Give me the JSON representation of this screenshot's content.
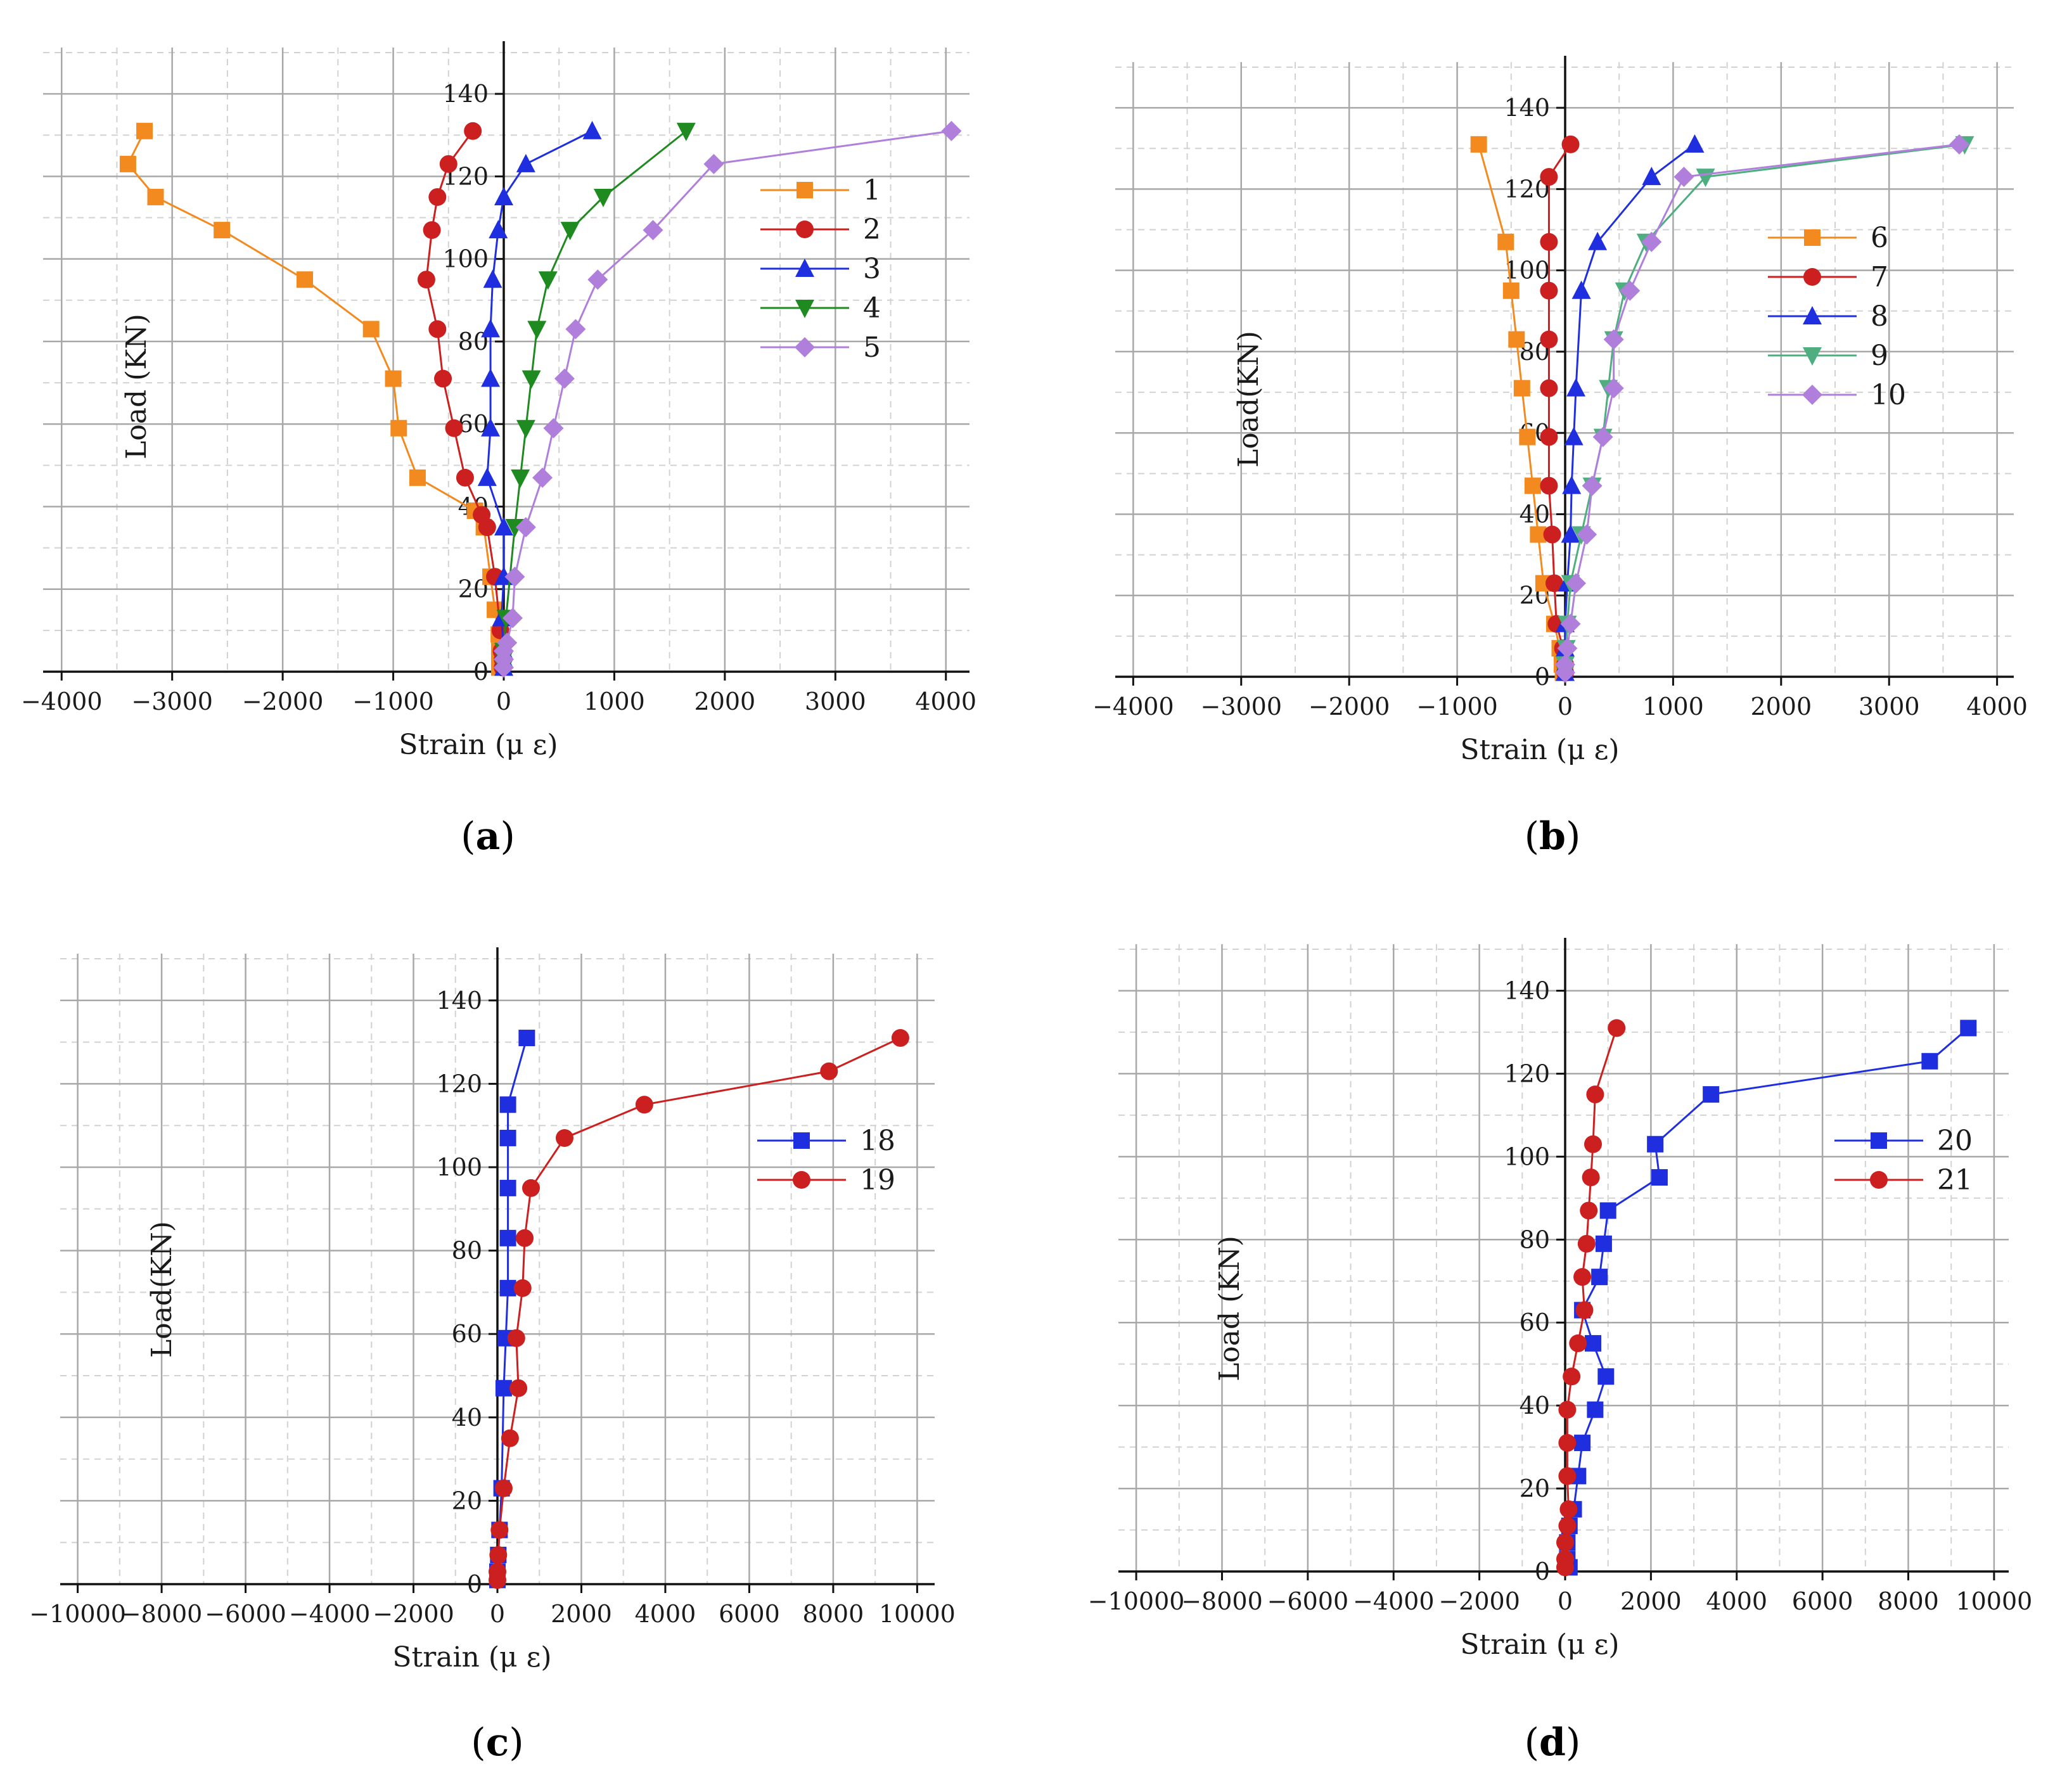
{
  "figure": {
    "background": "#ffffff",
    "grid_major": "#a8a8a8",
    "grid_minor": "#d2d2d2",
    "axis_color": "#111111"
  },
  "chart_data": [
    {
      "panel_id": "a",
      "caption": "a",
      "type": "line",
      "xlabel": "Strain (μ ε)",
      "ylabel": "Load (KN)",
      "xlim": [
        -4500,
        4500
      ],
      "ylim": [
        0,
        150
      ],
      "xticks": [
        -4000,
        -3000,
        -2000,
        -1000,
        0,
        1000,
        2000,
        3000,
        4000
      ],
      "xtick_labels": [
        "−4000",
        "−3000",
        "−2000",
        "−1000",
        "0",
        "1000",
        "2000",
        "3000",
        "4000"
      ],
      "yticks": [
        0,
        20,
        40,
        60,
        80,
        100,
        120,
        140
      ],
      "ytick_labels": [
        "0",
        "20",
        "40",
        "60",
        "80",
        "100",
        "120",
        "140"
      ],
      "legend_position": "upper-right",
      "series": [
        {
          "name": "1",
          "color": "#f28a1f",
          "marker": "square",
          "x": [
            -40,
            -40,
            -40,
            -45,
            -80,
            -120,
            -180,
            -260,
            -780,
            -950,
            -1000,
            -1200,
            -1800,
            -2550,
            -3150,
            -3400,
            -3250
          ],
          "y": [
            1,
            3,
            5,
            9,
            15,
            23,
            35,
            39,
            47,
            59,
            71,
            83,
            95,
            107,
            115,
            123,
            131
          ]
        },
        {
          "name": "2",
          "color": "#cc1f1f",
          "marker": "circle",
          "x": [
            -10,
            -10,
            -20,
            -30,
            -80,
            -150,
            -200,
            -350,
            -450,
            -550,
            -600,
            -700,
            -650,
            -600,
            -500,
            -280
          ],
          "y": [
            1,
            3,
            5,
            10,
            23,
            35,
            38,
            47,
            59,
            71,
            83,
            95,
            107,
            115,
            123,
            131
          ]
        },
        {
          "name": "3",
          "color": "#1f2fe0",
          "marker": "triangle",
          "x": [
            0,
            0,
            0,
            -20,
            0,
            0,
            -150,
            -120,
            -120,
            -120,
            -100,
            -50,
            0,
            200,
            800
          ],
          "y": [
            1,
            3,
            5,
            13,
            23,
            35,
            47,
            59,
            71,
            83,
            95,
            107,
            115,
            123,
            131
          ]
        },
        {
          "name": "4",
          "color": "#1f8a1f",
          "marker": "triangle-down",
          "x": [
            0,
            0,
            0,
            20,
            100,
            150,
            200,
            250,
            300,
            400,
            600,
            900,
            1650
          ],
          "y": [
            1,
            3,
            5,
            13,
            35,
            47,
            59,
            71,
            83,
            95,
            107,
            115,
            131
          ]
        },
        {
          "name": "5",
          "color": "#b07fdc",
          "marker": "diamond",
          "x": [
            0,
            0,
            0,
            30,
            80,
            100,
            200,
            350,
            450,
            550,
            650,
            850,
            1350,
            1900,
            4050
          ],
          "y": [
            1,
            3,
            5,
            7,
            13,
            23,
            35,
            47,
            59,
            71,
            83,
            95,
            107,
            123,
            131
          ]
        }
      ]
    },
    {
      "panel_id": "b",
      "caption": "b",
      "type": "line",
      "xlabel": "Strain (μ ε)",
      "ylabel": "Load(KN)",
      "xlim": [
        -4000,
        4200
      ],
      "ylim": [
        0,
        150
      ],
      "xticks": [
        -4000,
        -3000,
        -2000,
        -1000,
        0,
        1000,
        2000,
        3000,
        4000
      ],
      "xtick_labels": [
        "−4000",
        "−3000",
        "−2000",
        "−1000",
        "0",
        "1000",
        "2000",
        "3000",
        "4000"
      ],
      "yticks": [
        0,
        20,
        40,
        60,
        80,
        100,
        120,
        140
      ],
      "ytick_labels": [
        "0",
        "20",
        "40",
        "60",
        "80",
        "100",
        "120",
        "140"
      ],
      "legend_position": "upper-right",
      "series": [
        {
          "name": "6",
          "color": "#f28a1f",
          "marker": "square",
          "x": [
            -20,
            -30,
            -50,
            -100,
            -200,
            -250,
            -300,
            -350,
            -400,
            -450,
            -500,
            -550,
            -800
          ],
          "y": [
            1,
            3,
            7,
            13,
            23,
            35,
            47,
            59,
            71,
            83,
            95,
            107,
            131
          ]
        },
        {
          "name": "7",
          "color": "#cc1f1f",
          "marker": "circle",
          "x": [
            0,
            0,
            -20,
            -80,
            -100,
            -120,
            -150,
            -150,
            -150,
            -150,
            -150,
            -150,
            -150,
            50
          ],
          "y": [
            1,
            3,
            7,
            13,
            23,
            35,
            47,
            59,
            71,
            83,
            95,
            107,
            123,
            131
          ]
        },
        {
          "name": "8",
          "color": "#1f2fe0",
          "marker": "triangle",
          "x": [
            0,
            0,
            0,
            0,
            20,
            50,
            60,
            80,
            100,
            150,
            300,
            800,
            1200
          ],
          "y": [
            1,
            3,
            7,
            13,
            23,
            35,
            47,
            59,
            71,
            95,
            107,
            123,
            131
          ]
        },
        {
          "name": "9",
          "color": "#4fae7f",
          "marker": "triangle-down",
          "x": [
            0,
            0,
            10,
            20,
            50,
            150,
            250,
            350,
            400,
            450,
            550,
            750,
            1300,
            3700
          ],
          "y": [
            1,
            3,
            7,
            13,
            23,
            35,
            47,
            59,
            71,
            83,
            95,
            107,
            123,
            131
          ]
        },
        {
          "name": "10",
          "color": "#b07fdc",
          "marker": "diamond",
          "x": [
            0,
            0,
            20,
            50,
            100,
            200,
            250,
            350,
            450,
            450,
            600,
            800,
            1100,
            3650
          ],
          "y": [
            1,
            3,
            7,
            13,
            23,
            35,
            47,
            59,
            71,
            83,
            95,
            107,
            123,
            131
          ]
        }
      ]
    },
    {
      "panel_id": "c",
      "caption": "c",
      "type": "line",
      "xlabel": "Strain (μ ε)",
      "ylabel": "Load(KN)",
      "xlim": [
        -10000,
        10000
      ],
      "ylim": [
        0,
        150
      ],
      "xticks": [
        -10000,
        -8000,
        -6000,
        -4000,
        -2000,
        0,
        2000,
        4000,
        6000,
        8000,
        10000
      ],
      "xtick_labels": [
        "−10000",
        "−8000",
        "−6000",
        "−4000",
        "−2000",
        "0",
        "2000",
        "4000",
        "6000",
        "8000",
        "10000"
      ],
      "yticks": [
        0,
        20,
        40,
        60,
        80,
        100,
        120,
        140
      ],
      "ytick_labels": [
        "0",
        "20",
        "40",
        "60",
        "80",
        "100",
        "120",
        "140"
      ],
      "legend_position": "center-right",
      "series": [
        {
          "name": "18",
          "color": "#1f2fe0",
          "marker": "square",
          "x": [
            0,
            0,
            20,
            50,
            100,
            150,
            200,
            250,
            250,
            250,
            250,
            250,
            700
          ],
          "y": [
            1,
            3,
            7,
            13,
            23,
            47,
            59,
            71,
            83,
            95,
            107,
            115,
            131
          ]
        },
        {
          "name": "19",
          "color": "#cc1f1f",
          "marker": "circle",
          "x": [
            0,
            0,
            20,
            50,
            150,
            300,
            500,
            450,
            600,
            650,
            800,
            1600,
            3500,
            7900,
            9600
          ],
          "y": [
            1,
            3,
            7,
            13,
            23,
            35,
            47,
            59,
            71,
            83,
            95,
            107,
            115,
            123,
            131
          ]
        }
      ]
    },
    {
      "panel_id": "d",
      "caption": "d",
      "type": "line",
      "xlabel": "Strain (μ ε)",
      "ylabel": "Load (KN)",
      "xlim": [
        -10000,
        10000
      ],
      "ylim": [
        0,
        150
      ],
      "xticks": [
        -10000,
        -8000,
        -6000,
        -4000,
        -2000,
        0,
        2000,
        4000,
        6000,
        8000,
        10000
      ],
      "xtick_labels": [
        "−10000",
        "−8000",
        "−6000",
        "−4000",
        "−2000",
        "0",
        "2000",
        "4000",
        "6000",
        "8000",
        "10000"
      ],
      "yticks": [
        0,
        20,
        40,
        60,
        80,
        100,
        120,
        140
      ],
      "ytick_labels": [
        "0",
        "20",
        "40",
        "60",
        "80",
        "100",
        "120",
        "140"
      ],
      "legend_position": "center-right",
      "series": [
        {
          "name": "20",
          "color": "#1f2fe0",
          "marker": "square",
          "x": [
            100,
            50,
            50,
            100,
            200,
            300,
            400,
            700,
            950,
            650,
            400,
            800,
            900,
            1000,
            2200,
            2100,
            3400,
            8500,
            9400
          ],
          "y": [
            1,
            3,
            7,
            11,
            15,
            23,
            31,
            39,
            47,
            55,
            63,
            71,
            79,
            87,
            95,
            103,
            115,
            123,
            131
          ]
        },
        {
          "name": "21",
          "color": "#cc1f1f",
          "marker": "circle",
          "x": [
            0,
            0,
            0,
            50,
            80,
            50,
            50,
            50,
            150,
            300,
            450,
            400,
            500,
            550,
            600,
            650,
            700,
            1200
          ],
          "y": [
            1,
            3,
            7,
            11,
            15,
            23,
            31,
            39,
            47,
            55,
            63,
            71,
            79,
            87,
            95,
            103,
            115,
            131
          ]
        }
      ]
    }
  ]
}
